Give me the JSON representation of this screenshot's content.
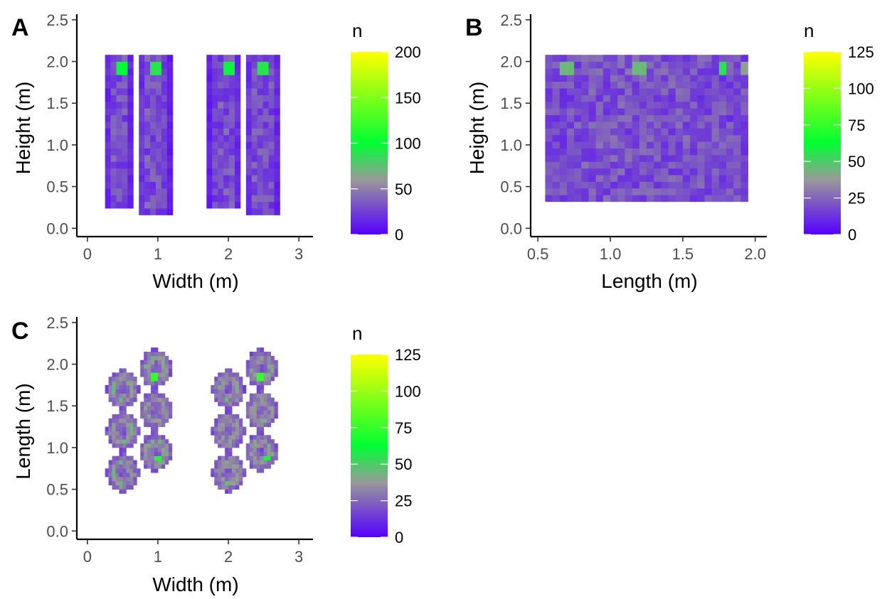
{
  "chart_data": [
    {
      "type": "heatmap",
      "panel_label": "A",
      "xlabel": "Width (m)",
      "ylabel": "Height (m)",
      "xlim": [
        -0.15,
        3.2
      ],
      "ylim": [
        -0.1,
        2.55
      ],
      "x_ticks": [
        0,
        1,
        2,
        3
      ],
      "x_tick_labels": [
        "0",
        "1",
        "2",
        "3"
      ],
      "y_ticks": [
        0.0,
        0.5,
        1.0,
        1.5,
        2.0,
        2.5
      ],
      "y_tick_labels": [
        "0.0",
        "0.5",
        "1.0",
        "1.5",
        "2.0",
        "2.5"
      ],
      "bin": [
        0.08,
        0.08
      ],
      "regions": [
        {
          "kind": "column",
          "xmin": 0.24,
          "xmax": 0.64,
          "ymin": 0.26,
          "ymax": 2.05,
          "base": 28
        },
        {
          "kind": "column",
          "xmin": 0.72,
          "xmax": 1.18,
          "ymin": 0.2,
          "ymax": 2.05,
          "base": 28
        },
        {
          "kind": "column",
          "xmin": 1.72,
          "xmax": 2.18,
          "ymin": 0.26,
          "ymax": 2.05,
          "base": 28
        },
        {
          "kind": "column",
          "xmin": 2.22,
          "xmax": 2.72,
          "ymin": 0.2,
          "ymax": 2.05,
          "base": 28
        }
      ],
      "hotspots": [
        {
          "x": 0.5,
          "y": 1.95,
          "value": 100
        },
        {
          "x": 1.0,
          "y": 1.95,
          "value": 90
        },
        {
          "x": 2.0,
          "y": 1.95,
          "value": 95
        },
        {
          "x": 2.5,
          "y": 1.93,
          "value": 90
        }
      ],
      "legend": {
        "title": "n",
        "min": 0,
        "max": 200,
        "ticks": [
          0,
          50,
          100,
          150,
          200
        ],
        "tick_labels": [
          "0",
          "50",
          "100",
          "150",
          "200"
        ]
      }
    },
    {
      "type": "heatmap",
      "panel_label": "B",
      "xlabel": "Length (m)",
      "ylabel": "Height (m)",
      "xlim": [
        0.45,
        2.08
      ],
      "ylim": [
        -0.1,
        2.55
      ],
      "x_ticks": [
        0.5,
        1.0,
        1.5,
        2.0
      ],
      "x_tick_labels": [
        "0.5",
        "1.0",
        "1.5",
        "2.0"
      ],
      "y_ticks": [
        0.0,
        0.5,
        1.0,
        1.5,
        2.0,
        2.5
      ],
      "y_tick_labels": [
        "0.0",
        "0.5",
        "1.0",
        "1.5",
        "2.0",
        "2.5"
      ],
      "bin": [
        0.05,
        0.08
      ],
      "regions": [
        {
          "kind": "block",
          "xmin": 0.55,
          "xmax": 1.96,
          "ymin": 0.35,
          "ymax": 2.05,
          "base": 18
        }
      ],
      "hotspots": [
        {
          "x": 0.7,
          "y": 1.95,
          "value": 45
        },
        {
          "x": 1.2,
          "y": 1.95,
          "value": 45
        },
        {
          "x": 1.78,
          "y": 1.95,
          "value": 55
        },
        {
          "x": 1.95,
          "y": 1.95,
          "value": 40
        }
      ],
      "legend": {
        "title": "n",
        "min": 0,
        "max": 125,
        "ticks": [
          0,
          25,
          50,
          75,
          100,
          125
        ],
        "tick_labels": [
          "0",
          "25",
          "50",
          "75",
          "100",
          "125"
        ]
      }
    },
    {
      "type": "heatmap",
      "panel_label": "C",
      "xlabel": "Width (m)",
      "ylabel": "Length (m)",
      "xlim": [
        -0.15,
        3.2
      ],
      "ylim": [
        -0.1,
        2.55
      ],
      "x_ticks": [
        0,
        1,
        2,
        3
      ],
      "x_tick_labels": [
        "0",
        "1",
        "2",
        "3"
      ],
      "y_ticks": [
        0.0,
        0.5,
        1.0,
        1.5,
        2.0,
        2.5
      ],
      "y_tick_labels": [
        "0.0",
        "0.5",
        "1.0",
        "1.5",
        "2.0",
        "2.5"
      ],
      "bin": [
        0.05,
        0.05
      ],
      "regions": [
        {
          "kind": "ring",
          "cx": 0.5,
          "cy": 0.7,
          "r": 0.23,
          "base": 30
        },
        {
          "kind": "ring",
          "cx": 0.5,
          "cy": 1.2,
          "r": 0.23,
          "base": 30
        },
        {
          "kind": "ring",
          "cx": 0.5,
          "cy": 1.7,
          "r": 0.23,
          "base": 30
        },
        {
          "kind": "ring",
          "cx": 0.97,
          "cy": 0.95,
          "r": 0.23,
          "base": 30
        },
        {
          "kind": "ring",
          "cx": 0.97,
          "cy": 1.45,
          "r": 0.23,
          "base": 30
        },
        {
          "kind": "ring",
          "cx": 0.97,
          "cy": 1.95,
          "r": 0.23,
          "base": 30
        },
        {
          "kind": "ring",
          "cx": 2.0,
          "cy": 0.7,
          "r": 0.23,
          "base": 30
        },
        {
          "kind": "ring",
          "cx": 2.0,
          "cy": 1.2,
          "r": 0.23,
          "base": 30
        },
        {
          "kind": "ring",
          "cx": 2.0,
          "cy": 1.7,
          "r": 0.23,
          "base": 30
        },
        {
          "kind": "ring",
          "cx": 2.47,
          "cy": 0.95,
          "r": 0.23,
          "base": 30
        },
        {
          "kind": "ring",
          "cx": 2.47,
          "cy": 1.45,
          "r": 0.23,
          "base": 30
        },
        {
          "kind": "ring",
          "cx": 2.47,
          "cy": 1.95,
          "r": 0.23,
          "base": 30
        }
      ],
      "hotspots": [
        {
          "x": 0.95,
          "y": 1.85,
          "value": 75
        },
        {
          "x": 2.45,
          "y": 1.85,
          "value": 75
        },
        {
          "x": 1.0,
          "y": 0.88,
          "value": 70
        },
        {
          "x": 2.55,
          "y": 0.88,
          "value": 65
        }
      ],
      "legend": {
        "title": "n",
        "min": 0,
        "max": 125,
        "ticks": [
          0,
          25,
          50,
          75,
          100,
          125
        ],
        "tick_labels": [
          "0",
          "25",
          "50",
          "75",
          "100",
          "125"
        ]
      }
    }
  ],
  "colors": {
    "low": "#5500ff",
    "mid": "#999999",
    "peak": "#00ff33",
    "high": "#ffff00",
    "background": "#ffffff"
  }
}
